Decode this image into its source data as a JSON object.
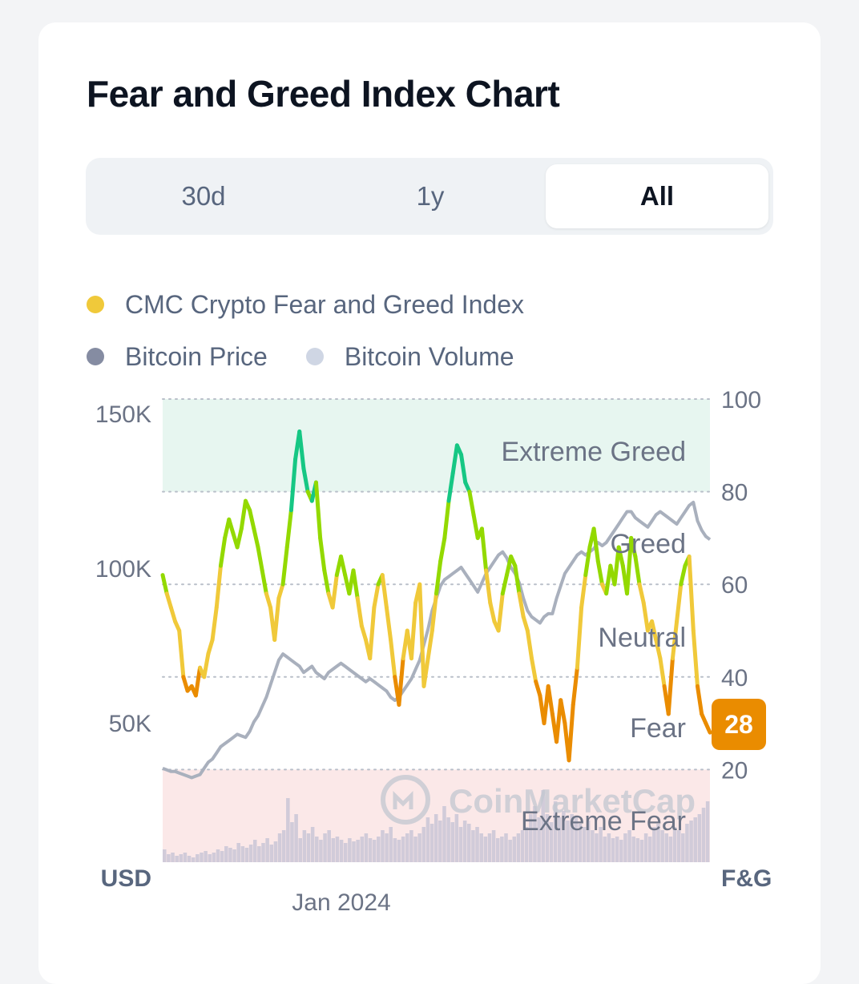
{
  "title": "Fear and Greed Index Chart",
  "tabs": [
    {
      "label": "30d",
      "active": false
    },
    {
      "label": "1y",
      "active": false
    },
    {
      "label": "All",
      "active": true
    }
  ],
  "legend": [
    {
      "label": "CMC Crypto Fear and Greed Index",
      "color": "#f0c93a"
    },
    {
      "label": "Bitcoin Price",
      "color": "#858ca2"
    },
    {
      "label": "Bitcoin Volume",
      "color": "#cfd6e4"
    }
  ],
  "watermark": "CoinMarketCap",
  "chart_data": {
    "type": "line",
    "x_tick_labels": [
      "Jan 2024"
    ],
    "left_axis": {
      "label": "USD",
      "ticks": [
        "150K",
        "100K",
        "50K"
      ],
      "tick_values": [
        150000,
        100000,
        50000
      ],
      "range": [
        0,
        150000
      ]
    },
    "right_axis": {
      "label": "F&G",
      "ticks": [
        "100",
        "80",
        "60",
        "40",
        "20"
      ],
      "tick_values": [
        100,
        80,
        60,
        40,
        20
      ],
      "range": [
        0,
        100
      ]
    },
    "zones": [
      {
        "label": "Extreme Greed",
        "from": 80,
        "to": 100,
        "fill": "#e7f6f0"
      },
      {
        "label": "Greed",
        "from": 60,
        "to": 80
      },
      {
        "label": "Neutral",
        "from": 40,
        "to": 60
      },
      {
        "label": "Fear",
        "from": 20,
        "to": 40
      },
      {
        "label": "Extreme Fear",
        "from": 0,
        "to": 20,
        "fill": "#fbe8e8"
      }
    ],
    "current_value": "28",
    "current_value_color": "#ea8c00",
    "fear_greed_colors": {
      "extreme_greed": "#16c784",
      "greed": "#93d900",
      "neutral": "#f0c93a",
      "fear": "#ea8c00",
      "extreme_fear": "#ea3943"
    },
    "series": [
      {
        "name": "CMC Crypto Fear and Greed Index",
        "values": [
          62,
          58,
          55,
          52,
          50,
          40,
          37,
          38,
          36,
          42,
          40,
          45,
          48,
          55,
          64,
          70,
          74,
          71,
          68,
          72,
          78,
          76,
          72,
          68,
          63,
          58,
          55,
          48,
          57,
          60,
          68,
          76,
          87,
          93,
          85,
          80,
          78,
          82,
          70,
          63,
          58,
          55,
          62,
          66,
          62,
          58,
          63,
          57,
          51,
          48,
          44,
          55,
          60,
          62,
          55,
          48,
          40,
          34,
          44,
          50,
          44,
          56,
          60,
          38,
          44,
          50,
          58,
          65,
          70,
          78,
          84,
          90,
          88,
          82,
          80,
          75,
          70,
          72,
          63,
          56,
          52,
          50,
          58,
          62,
          66,
          64,
          58,
          53,
          50,
          44,
          39,
          36,
          30,
          38,
          32,
          26,
          35,
          30,
          22,
          34,
          42,
          55,
          62,
          68,
          72,
          65,
          60,
          58,
          64,
          60,
          68,
          64,
          58,
          70,
          66,
          60,
          56,
          50,
          52,
          48,
          44,
          38,
          32,
          44,
          52,
          60,
          64,
          66,
          50,
          38,
          32,
          30,
          28
        ],
        "colors": "fear_greed_colors"
      },
      {
        "name": "Bitcoin Price",
        "values": [
          35000,
          34500,
          34000,
          34000,
          33500,
          33000,
          32500,
          32000,
          32500,
          33000,
          35000,
          37000,
          38000,
          40000,
          42000,
          43000,
          44000,
          45000,
          46000,
          45500,
          45000,
          47000,
          50000,
          52000,
          55000,
          58000,
          62000,
          66000,
          70000,
          72000,
          71000,
          70000,
          69000,
          68000,
          66000,
          67000,
          68000,
          66000,
          65000,
          64000,
          66000,
          67000,
          68000,
          69000,
          68000,
          67000,
          66000,
          65000,
          64000,
          63000,
          64000,
          63000,
          62000,
          61000,
          60000,
          58000,
          57000,
          58000,
          60000,
          62000,
          64000,
          67000,
          70000,
          75000,
          80000,
          86000,
          90000,
          94000,
          96000,
          97000,
          98000,
          99000,
          100000,
          98000,
          96000,
          94000,
          92000,
          95000,
          98000,
          100000,
          102000,
          104000,
          105000,
          103000,
          100000,
          98000,
          95000,
          90000,
          86000,
          84000,
          83000,
          82000,
          84000,
          85000,
          85000,
          90000,
          94000,
          98000,
          100000,
          102000,
          104000,
          105000,
          104000,
          105000,
          106000,
          108000,
          107000,
          108000,
          110000,
          112000,
          114000,
          116000,
          118000,
          118000,
          116000,
          115000,
          114000,
          113000,
          115000,
          117000,
          118000,
          117000,
          116000,
          115000,
          114000,
          116000,
          118000,
          120000,
          121000,
          115000,
          112000,
          110000,
          109000
        ]
      },
      {
        "name": "Bitcoin Volume",
        "values": [
          8,
          5,
          6,
          4,
          5,
          6,
          4,
          3,
          5,
          6,
          7,
          5,
          6,
          8,
          7,
          10,
          9,
          8,
          12,
          10,
          9,
          11,
          14,
          10,
          12,
          15,
          11,
          13,
          18,
          20,
          40,
          25,
          30,
          15,
          20,
          18,
          22,
          16,
          14,
          18,
          20,
          15,
          16,
          14,
          12,
          15,
          13,
          14,
          16,
          18,
          15,
          14,
          16,
          20,
          18,
          22,
          15,
          14,
          16,
          18,
          20,
          16,
          18,
          22,
          28,
          24,
          30,
          26,
          35,
          28,
          25,
          30,
          22,
          26,
          24,
          20,
          22,
          18,
          16,
          18,
          20,
          15,
          16,
          18,
          14,
          16,
          18,
          20,
          22,
          30,
          35,
          28,
          45,
          30,
          25,
          38,
          28,
          32,
          26,
          30,
          28,
          24,
          22,
          26,
          20,
          18,
          22,
          16,
          18,
          15,
          16,
          14,
          18,
          20,
          16,
          15,
          14,
          18,
          16,
          22,
          24,
          20,
          18,
          16,
          22,
          20,
          18,
          24,
          26,
          28,
          30,
          34,
          38
        ]
      }
    ]
  }
}
